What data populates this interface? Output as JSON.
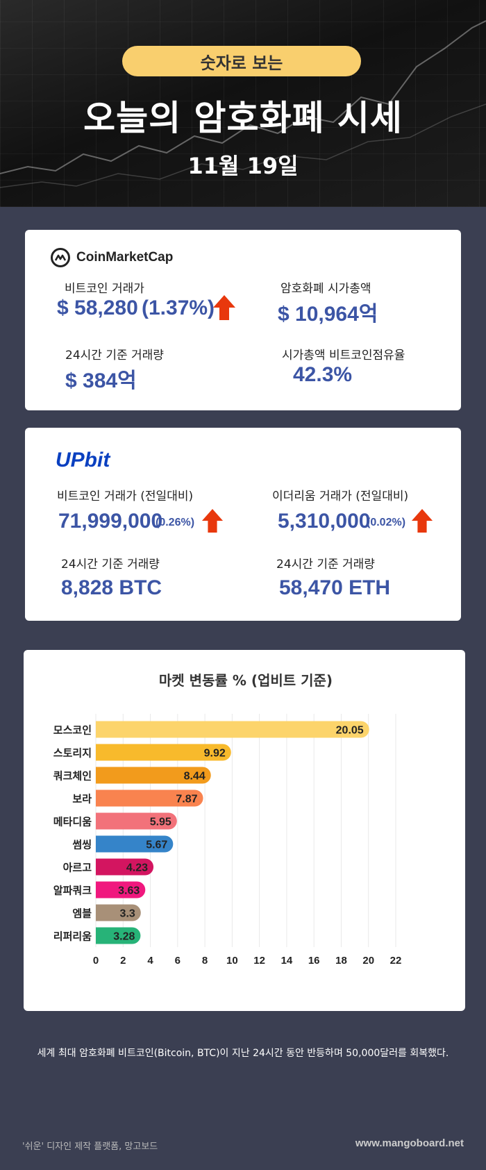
{
  "header": {
    "pill": "숫자로 보는",
    "title": "오늘의 암호화폐 시세",
    "date": "11월 19일"
  },
  "coinmarketcap": {
    "logo_text": "CoinMarketCap",
    "btc_label": "비트코인 거래가",
    "btc_price": "$ 58,280",
    "btc_change": "(1.37%)",
    "mcap_label": "암호화폐 시가총액",
    "mcap_value": "$ 10,964억",
    "vol_label": "24시간 기준 거래량",
    "vol_value": "$ 384억",
    "dominance_label": "시가총액 비트코인점유율",
    "dominance_value": "42.3%"
  },
  "upbit": {
    "logo_text": "UPbit",
    "btc_label": "비트코인 거래가 (전일대비)",
    "btc_price": "71,999,000",
    "btc_change": "(0.26%)",
    "eth_label": "이더리움 거래가 (전일대비)",
    "eth_price": "5,310,000",
    "eth_change": "(0.02%)",
    "btc_vol_label": "24시간 기준 거래량",
    "btc_vol_value": "8,828 BTC",
    "eth_vol_label": "24시간 기준 거래량",
    "eth_vol_value": "58,470 ETH"
  },
  "colors": {
    "accent_blue": "#3c55a5",
    "arrow_up": "#e8380d",
    "pill": "#f9cf6e"
  },
  "chart_data": {
    "type": "bar",
    "orientation": "horizontal",
    "title": "마켓 변동률 % (업비트 기준)",
    "categories": [
      "모스코인",
      "스토리지",
      "쿼크체인",
      "보라",
      "메타디움",
      "썸씽",
      "아르고",
      "알파쿼크",
      "엠블",
      "리퍼리움"
    ],
    "values": [
      20.05,
      9.92,
      8.44,
      7.87,
      5.95,
      5.67,
      4.23,
      3.63,
      3.3,
      3.28
    ],
    "value_labels": [
      "20.05",
      "9.92",
      "8.44",
      "7.87",
      "5.95",
      "5.67",
      "4.23",
      "3.63",
      "3.3",
      "3.28"
    ],
    "colors": [
      "#fcd46b",
      "#f8ba2c",
      "#f29b1c",
      "#f9834f",
      "#f2727a",
      "#3584c9",
      "#d31560",
      "#f0187e",
      "#a89078",
      "#27b378"
    ],
    "xlim": [
      0,
      22
    ],
    "xticks": [
      "0",
      "2",
      "4",
      "6",
      "8",
      "10",
      "12",
      "14",
      "16",
      "18",
      "20",
      "22"
    ],
    "grid": true
  },
  "footer": {
    "note": "세계 최대 암호화폐 비트코인(Bitcoin, BTC)이 지난 24시간 동안 반등하며 50,000달러를 회복했다.",
    "credit": "'쉬운' 디자인 제작 플랫폼, 망고보드",
    "site": "www.mangoboard.net"
  }
}
